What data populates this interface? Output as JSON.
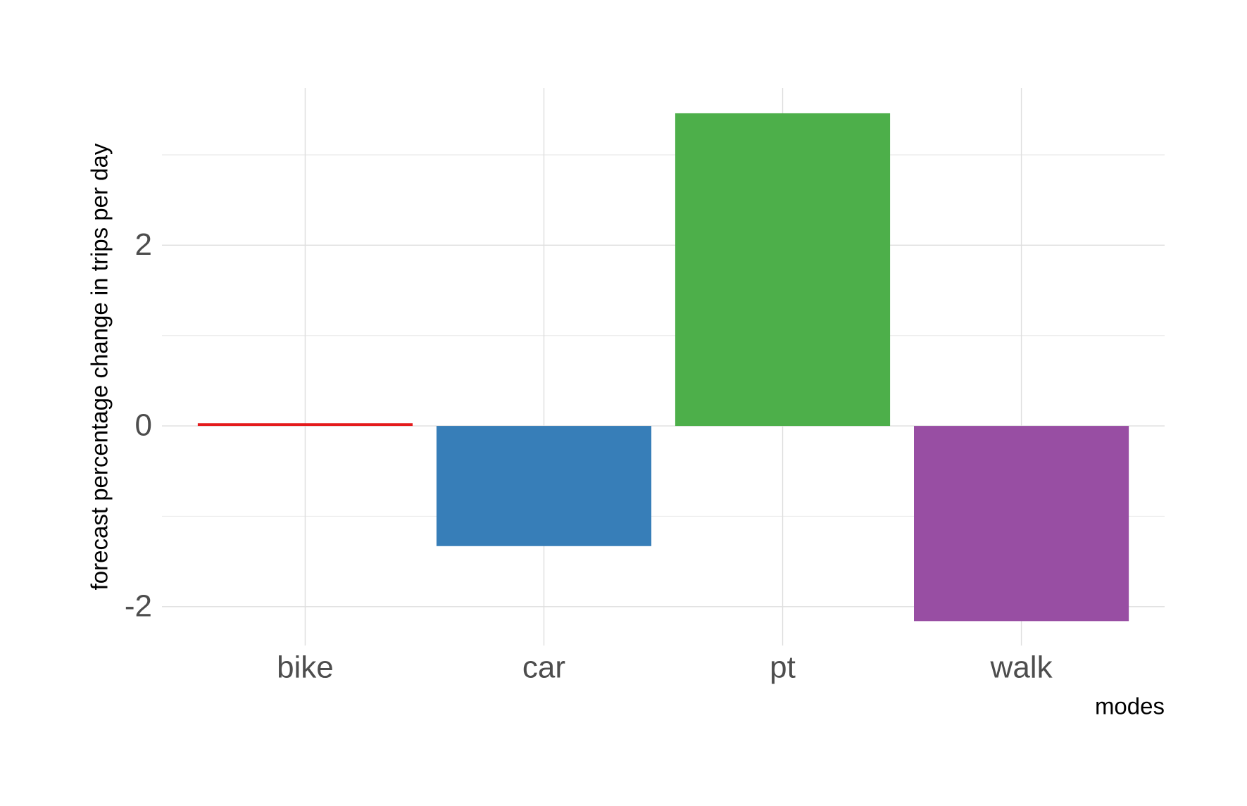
{
  "chart_data": {
    "type": "bar",
    "x_label": "modes",
    "y_label": "forecast percentage change in trips per day",
    "categories": [
      "bike",
      "car",
      "pt",
      "walk"
    ],
    "values": [
      0.03,
      -1.33,
      3.46,
      -2.16
    ],
    "colors": [
      "#e41a1c",
      "#377eb8",
      "#4daf4a",
      "#984ea3"
    ],
    "ylim": [
      -2.43,
      3.74
    ],
    "yticks": [
      -2,
      0,
      2
    ],
    "minor_yticks": [
      -1,
      1,
      3
    ],
    "grid": true
  }
}
